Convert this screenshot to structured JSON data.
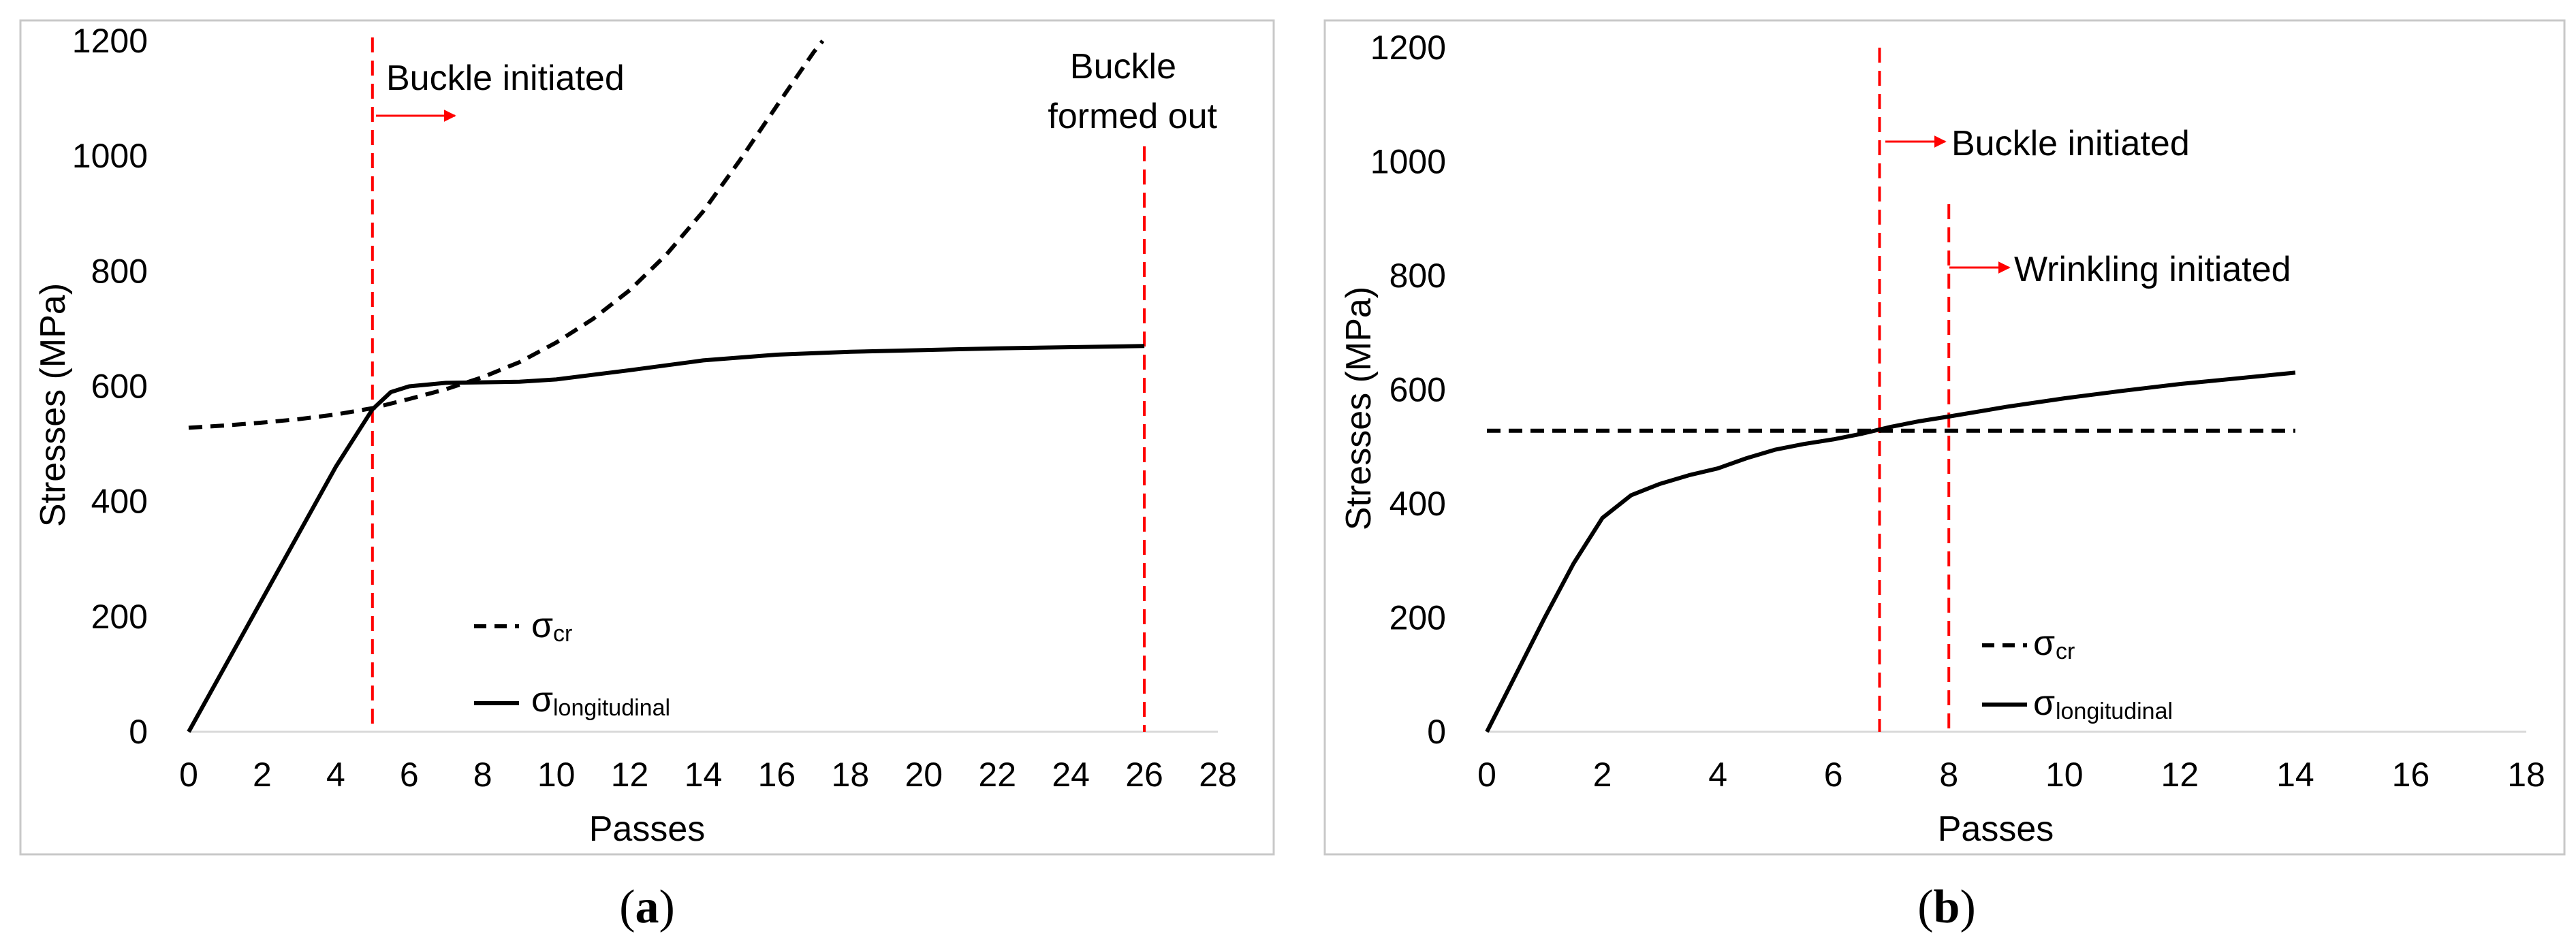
{
  "chart_data": [
    {
      "type": "line",
      "panel_label": "a",
      "xlabel": "Passes",
      "ylabel": "Stresses (MPa)",
      "xlim": [
        0,
        28
      ],
      "ylim": [
        0,
        1200
      ],
      "xticks": [
        "0",
        "2",
        "4",
        "6",
        "8",
        "10",
        "12",
        "14",
        "16",
        "18",
        "20",
        "22",
        "24",
        "26",
        "28"
      ],
      "yticks": [
        "0",
        "200",
        "400",
        "600",
        "800",
        "1000",
        "1200"
      ],
      "grid": false,
      "legend_position": "lower-center",
      "series": [
        {
          "name_symbol": "σ",
          "name_sub": "cr",
          "style": "dashed",
          "color": "#000000",
          "x": [
            0,
            1,
            2,
            3,
            4,
            5,
            6,
            7,
            8,
            9,
            10,
            11,
            12,
            13,
            14,
            15,
            16,
            17,
            17.5
          ],
          "y": [
            528,
            532,
            537,
            543,
            551,
            562,
            578,
            595,
            616,
            642,
            676,
            717,
            767,
            829,
            904,
            993,
            1087,
            1180,
            1220
          ]
        },
        {
          "name_symbol": "σ",
          "name_sub": "longitudinal",
          "style": "solid",
          "color": "#000000",
          "x": [
            0,
            1,
            2,
            3,
            4,
            5,
            5.5,
            6,
            7,
            8,
            9,
            10,
            12,
            14,
            16,
            18,
            20,
            22,
            24,
            26
          ],
          "y": [
            0,
            115,
            230,
            345,
            460,
            560,
            590,
            600,
            606,
            607,
            608,
            612,
            628,
            645,
            655,
            660,
            663,
            666,
            668,
            670
          ]
        }
      ],
      "vlines": [
        {
          "x": 5,
          "color": "#ff0000",
          "style": "dashed"
        },
        {
          "x": 26,
          "color": "#ff0000",
          "style": "dashed"
        }
      ],
      "annotations": [
        {
          "text": "Buckle initiated"
        },
        {
          "text": "Buckle"
        },
        {
          "text": "formed out"
        }
      ]
    },
    {
      "type": "line",
      "panel_label": "b",
      "xlabel": "Passes",
      "ylabel": "Stresses (MPa)",
      "xlim": [
        0,
        18
      ],
      "ylim": [
        0,
        1200
      ],
      "xticks": [
        "0",
        "2",
        "4",
        "6",
        "8",
        "10",
        "12",
        "14",
        "16",
        "18"
      ],
      "yticks": [
        "0",
        "200",
        "400",
        "600",
        "800",
        "1000",
        "1200"
      ],
      "grid": false,
      "legend_position": "lower-center",
      "series": [
        {
          "name_symbol": "σ",
          "name_sub": "cr",
          "style": "dashed",
          "color": "#000000",
          "x": [
            0,
            14
          ],
          "y": [
            528,
            528
          ]
        },
        {
          "name_symbol": "σ",
          "name_sub": "longitudinal",
          "style": "solid",
          "color": "#000000",
          "x": [
            0,
            0.5,
            1,
            1.5,
            2,
            2.5,
            3,
            3.5,
            4,
            4.5,
            5,
            5.5,
            6,
            6.5,
            7,
            7.5,
            8,
            9,
            10,
            11,
            12,
            13,
            14
          ],
          "y": [
            0,
            100,
            200,
            295,
            375,
            415,
            435,
            450,
            462,
            480,
            495,
            505,
            513,
            523,
            535,
            545,
            553,
            570,
            585,
            598,
            610,
            620,
            630
          ]
        }
      ],
      "vlines": [
        {
          "x": 6.8,
          "color": "#ff0000",
          "style": "dashed"
        },
        {
          "x": 8,
          "color": "#ff0000",
          "style": "dashed"
        }
      ],
      "annotations": [
        {
          "text": "Buckle initiated"
        },
        {
          "text": "Wrinkling initiated"
        }
      ]
    }
  ],
  "captions": {
    "a_open": "(",
    "a_letter": "a",
    "a_close": ")",
    "b_open": "(",
    "b_letter": "b",
    "b_close": ")"
  }
}
